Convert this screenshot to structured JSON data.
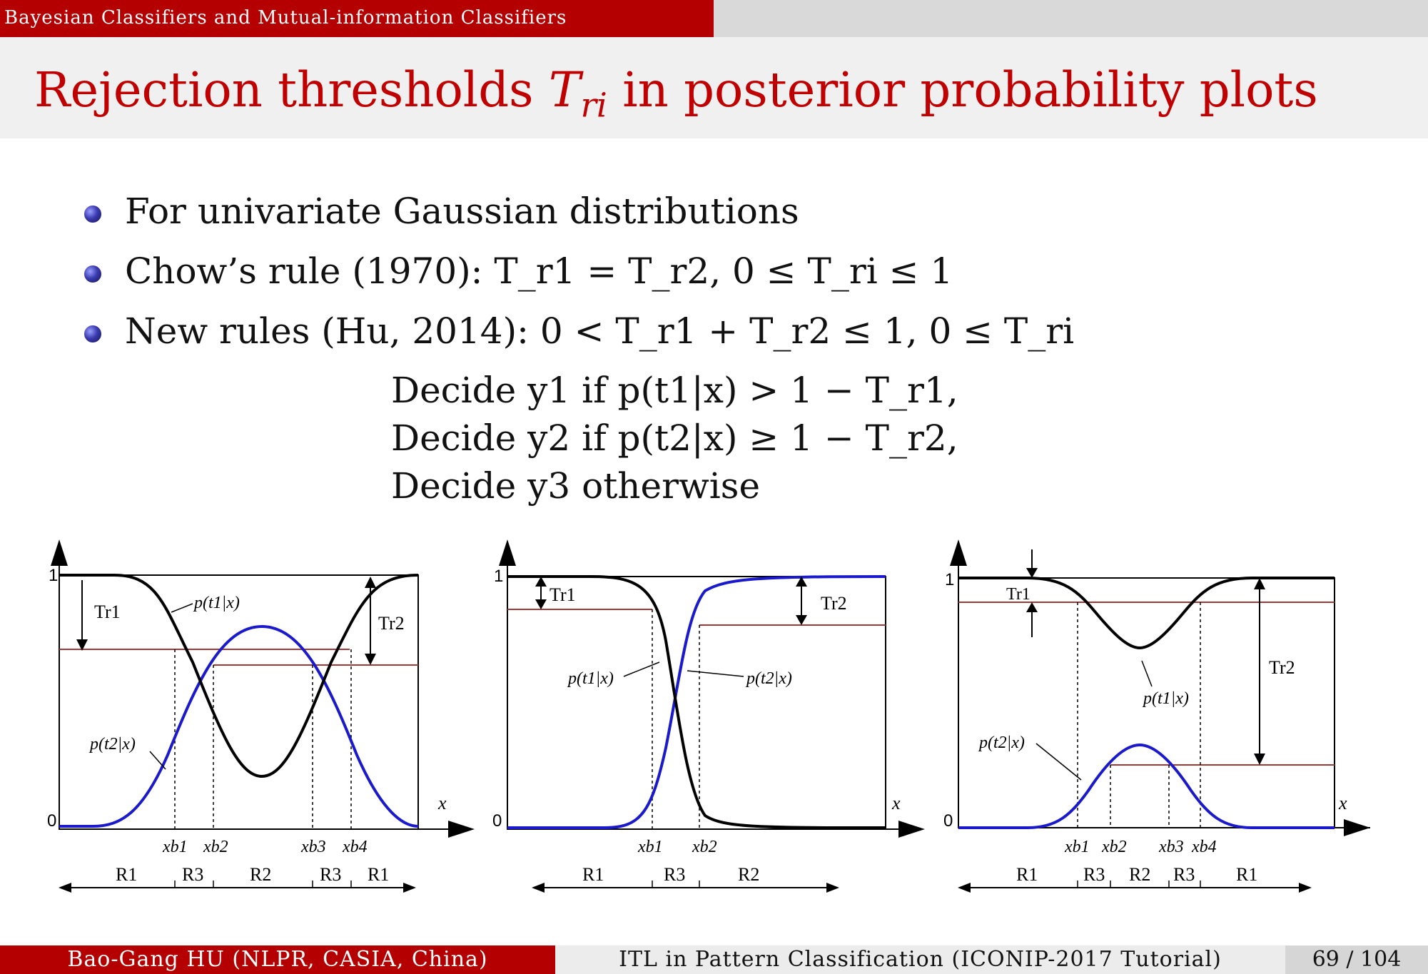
{
  "header": {
    "section": "Bayesian Classifiers and Mutual-information Classifiers",
    "title_prefix": "Rejection thresholds ",
    "title_var": "T",
    "title_sub": "ri",
    "title_suffix": " in posterior probability plots"
  },
  "bullets": [
    {
      "text": "For univariate Gaussian distributions"
    },
    {
      "text": "Chow’s rule (1970): T_r1 = T_r2, 0 ≤ T_ri ≤ 1"
    },
    {
      "text": "New rules (Hu, 2014): 0 < T_r1 + T_r2 ≤ 1, 0 ≤ T_ri"
    }
  ],
  "rules": [
    "Decide y1 if p(t1|x) > 1 − T_r1,",
    "Decide y2 if p(t2|x) ≥ 1 − T_r2,",
    "Decide y3 otherwise"
  ],
  "plots": {
    "y_one": "1",
    "y_zero": "0",
    "x_axis": "x",
    "p1": "p(t1|x)",
    "p2": "p(t2|x)",
    "tr1": "Tr1",
    "tr2": "Tr2",
    "left": {
      "boundaries": [
        "xb1",
        "xb2",
        "xb3",
        "xb4"
      ],
      "regions": [
        "R1",
        "R3",
        "R2",
        "R3",
        "R1"
      ]
    },
    "middle": {
      "boundaries": [
        "xb1",
        "xb2"
      ],
      "regions": [
        "R1",
        "R3",
        "R2"
      ]
    },
    "right": {
      "boundaries": [
        "xb1",
        "xb2",
        "xb3",
        "xb4"
      ],
      "regions": [
        "R1",
        "R3",
        "R2",
        "R3",
        "R1"
      ]
    }
  },
  "footer": {
    "author": "Bao-Gang HU (NLPR, CASIA, China)",
    "talk": "ITL in Pattern Classification (ICONIP-2017 Tutorial)",
    "page": "69 / 104"
  },
  "colors": {
    "accent": "#b40000",
    "title": "#c00000",
    "curve_t1": "#000000",
    "curve_t2": "#1a1acc",
    "threshold": "#a03a3a"
  }
}
